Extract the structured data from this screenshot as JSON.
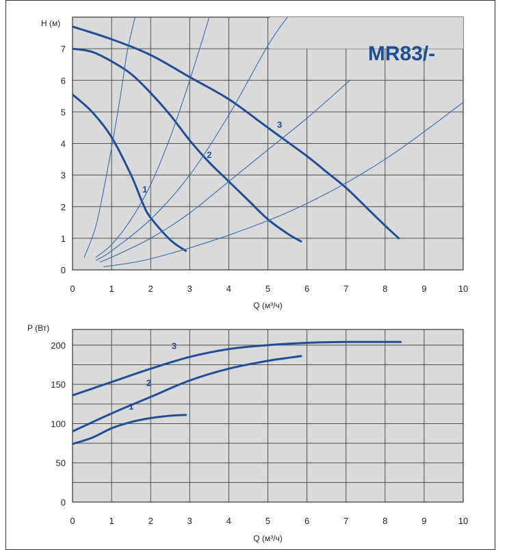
{
  "colors": {
    "background": "#ffffff",
    "plot_area": "#dadada",
    "grid": "#4d4d4d",
    "pump_curve": "#1f4e96",
    "system_curve": "#2f6db5",
    "brand": "#1f4e96"
  },
  "chart_data": [
    {
      "type": "line",
      "title": "MR83/-",
      "xlabel": "Q (м³/ч)",
      "ylabel": "H (м)",
      "xlim": [
        0,
        10
      ],
      "ylim": [
        0,
        8
      ],
      "x_ticks": [
        "0",
        "1",
        "2",
        "3",
        "4",
        "5",
        "6",
        "7",
        "8",
        "9",
        "10"
      ],
      "y_ticks": [
        "0",
        "1",
        "2",
        "3",
        "4",
        "5",
        "6",
        "7"
      ],
      "grid": true,
      "series": [
        {
          "name": "1",
          "role": "pump",
          "x": [
            0,
            0.5,
            1.0,
            1.5,
            1.8,
            2.0,
            2.5,
            2.9
          ],
          "y": [
            5.55,
            5.0,
            4.2,
            3.0,
            2.1,
            1.65,
            0.95,
            0.6
          ]
        },
        {
          "name": "2",
          "role": "pump",
          "x": [
            0,
            0.5,
            1.0,
            1.5,
            2.0,
            2.5,
            3.0,
            3.5,
            4.0,
            4.5,
            5.0,
            5.5,
            5.85
          ],
          "y": [
            7.0,
            6.9,
            6.6,
            6.2,
            5.6,
            4.9,
            4.1,
            3.4,
            2.8,
            2.2,
            1.6,
            1.15,
            0.9
          ]
        },
        {
          "name": "3",
          "role": "pump",
          "x": [
            0,
            1,
            2,
            3,
            4,
            5,
            6,
            6.5,
            7,
            7.5,
            8,
            8.35
          ],
          "y": [
            7.7,
            7.3,
            6.8,
            6.1,
            5.4,
            4.5,
            3.6,
            3.1,
            2.6,
            2.0,
            1.4,
            1.0
          ]
        },
        {
          "name": "",
          "role": "system",
          "x": [
            0.3,
            0.6,
            0.9,
            1.2,
            1.4,
            1.6
          ],
          "y": [
            0.4,
            1.4,
            3.2,
            5.3,
            6.9,
            8.0
          ]
        },
        {
          "name": "",
          "role": "system",
          "x": [
            0.6,
            1.0,
            1.5,
            2.0,
            2.5,
            3.0,
            3.5
          ],
          "y": [
            0.4,
            0.8,
            1.6,
            2.7,
            4.2,
            6.0,
            8.0
          ]
        },
        {
          "name": "",
          "role": "system",
          "x": [
            0.6,
            1.0,
            2.0,
            3.0,
            4.0,
            5.0,
            5.5
          ],
          "y": [
            0.3,
            0.6,
            1.6,
            3.0,
            4.9,
            7.1,
            8.0
          ]
        },
        {
          "name": "",
          "role": "system",
          "x": [
            0.7,
            1.0,
            2.0,
            3.0,
            4.0,
            5.0,
            6.0,
            7.1
          ],
          "y": [
            0.25,
            0.4,
            1.0,
            1.8,
            2.8,
            3.8,
            4.8,
            6.0
          ]
        },
        {
          "name": "",
          "role": "system",
          "x": [
            0.8,
            2.0,
            4.0,
            6.0,
            8.0,
            10.0
          ],
          "y": [
            0.1,
            0.35,
            1.1,
            2.1,
            3.5,
            5.3
          ]
        }
      ]
    },
    {
      "type": "line",
      "title": "",
      "xlabel": "Q (м³/ч)",
      "ylabel": "P (Вт)",
      "xlim": [
        0,
        10
      ],
      "ylim": [
        0,
        220
      ],
      "x_ticks": [
        "0",
        "1",
        "2",
        "3",
        "4",
        "5",
        "6",
        "7",
        "8",
        "9",
        "10"
      ],
      "y_ticks": [
        "0",
        "50",
        "100",
        "150",
        "200"
      ],
      "grid": true,
      "series": [
        {
          "name": "1",
          "x": [
            0,
            0.5,
            1.0,
            1.5,
            2.0,
            2.5,
            2.9
          ],
          "y": [
            74,
            82,
            94,
            102,
            107,
            110,
            111
          ]
        },
        {
          "name": "2",
          "x": [
            0,
            1,
            2,
            3,
            4,
            5,
            5.85
          ],
          "y": [
            90,
            113,
            134,
            155,
            170,
            180,
            186
          ]
        },
        {
          "name": "3",
          "x": [
            0,
            1,
            2,
            3,
            4,
            5,
            6,
            7,
            8,
            8.4
          ],
          "y": [
            136,
            153,
            170,
            185,
            195,
            200,
            203,
            204,
            204,
            204
          ]
        }
      ]
    }
  ]
}
